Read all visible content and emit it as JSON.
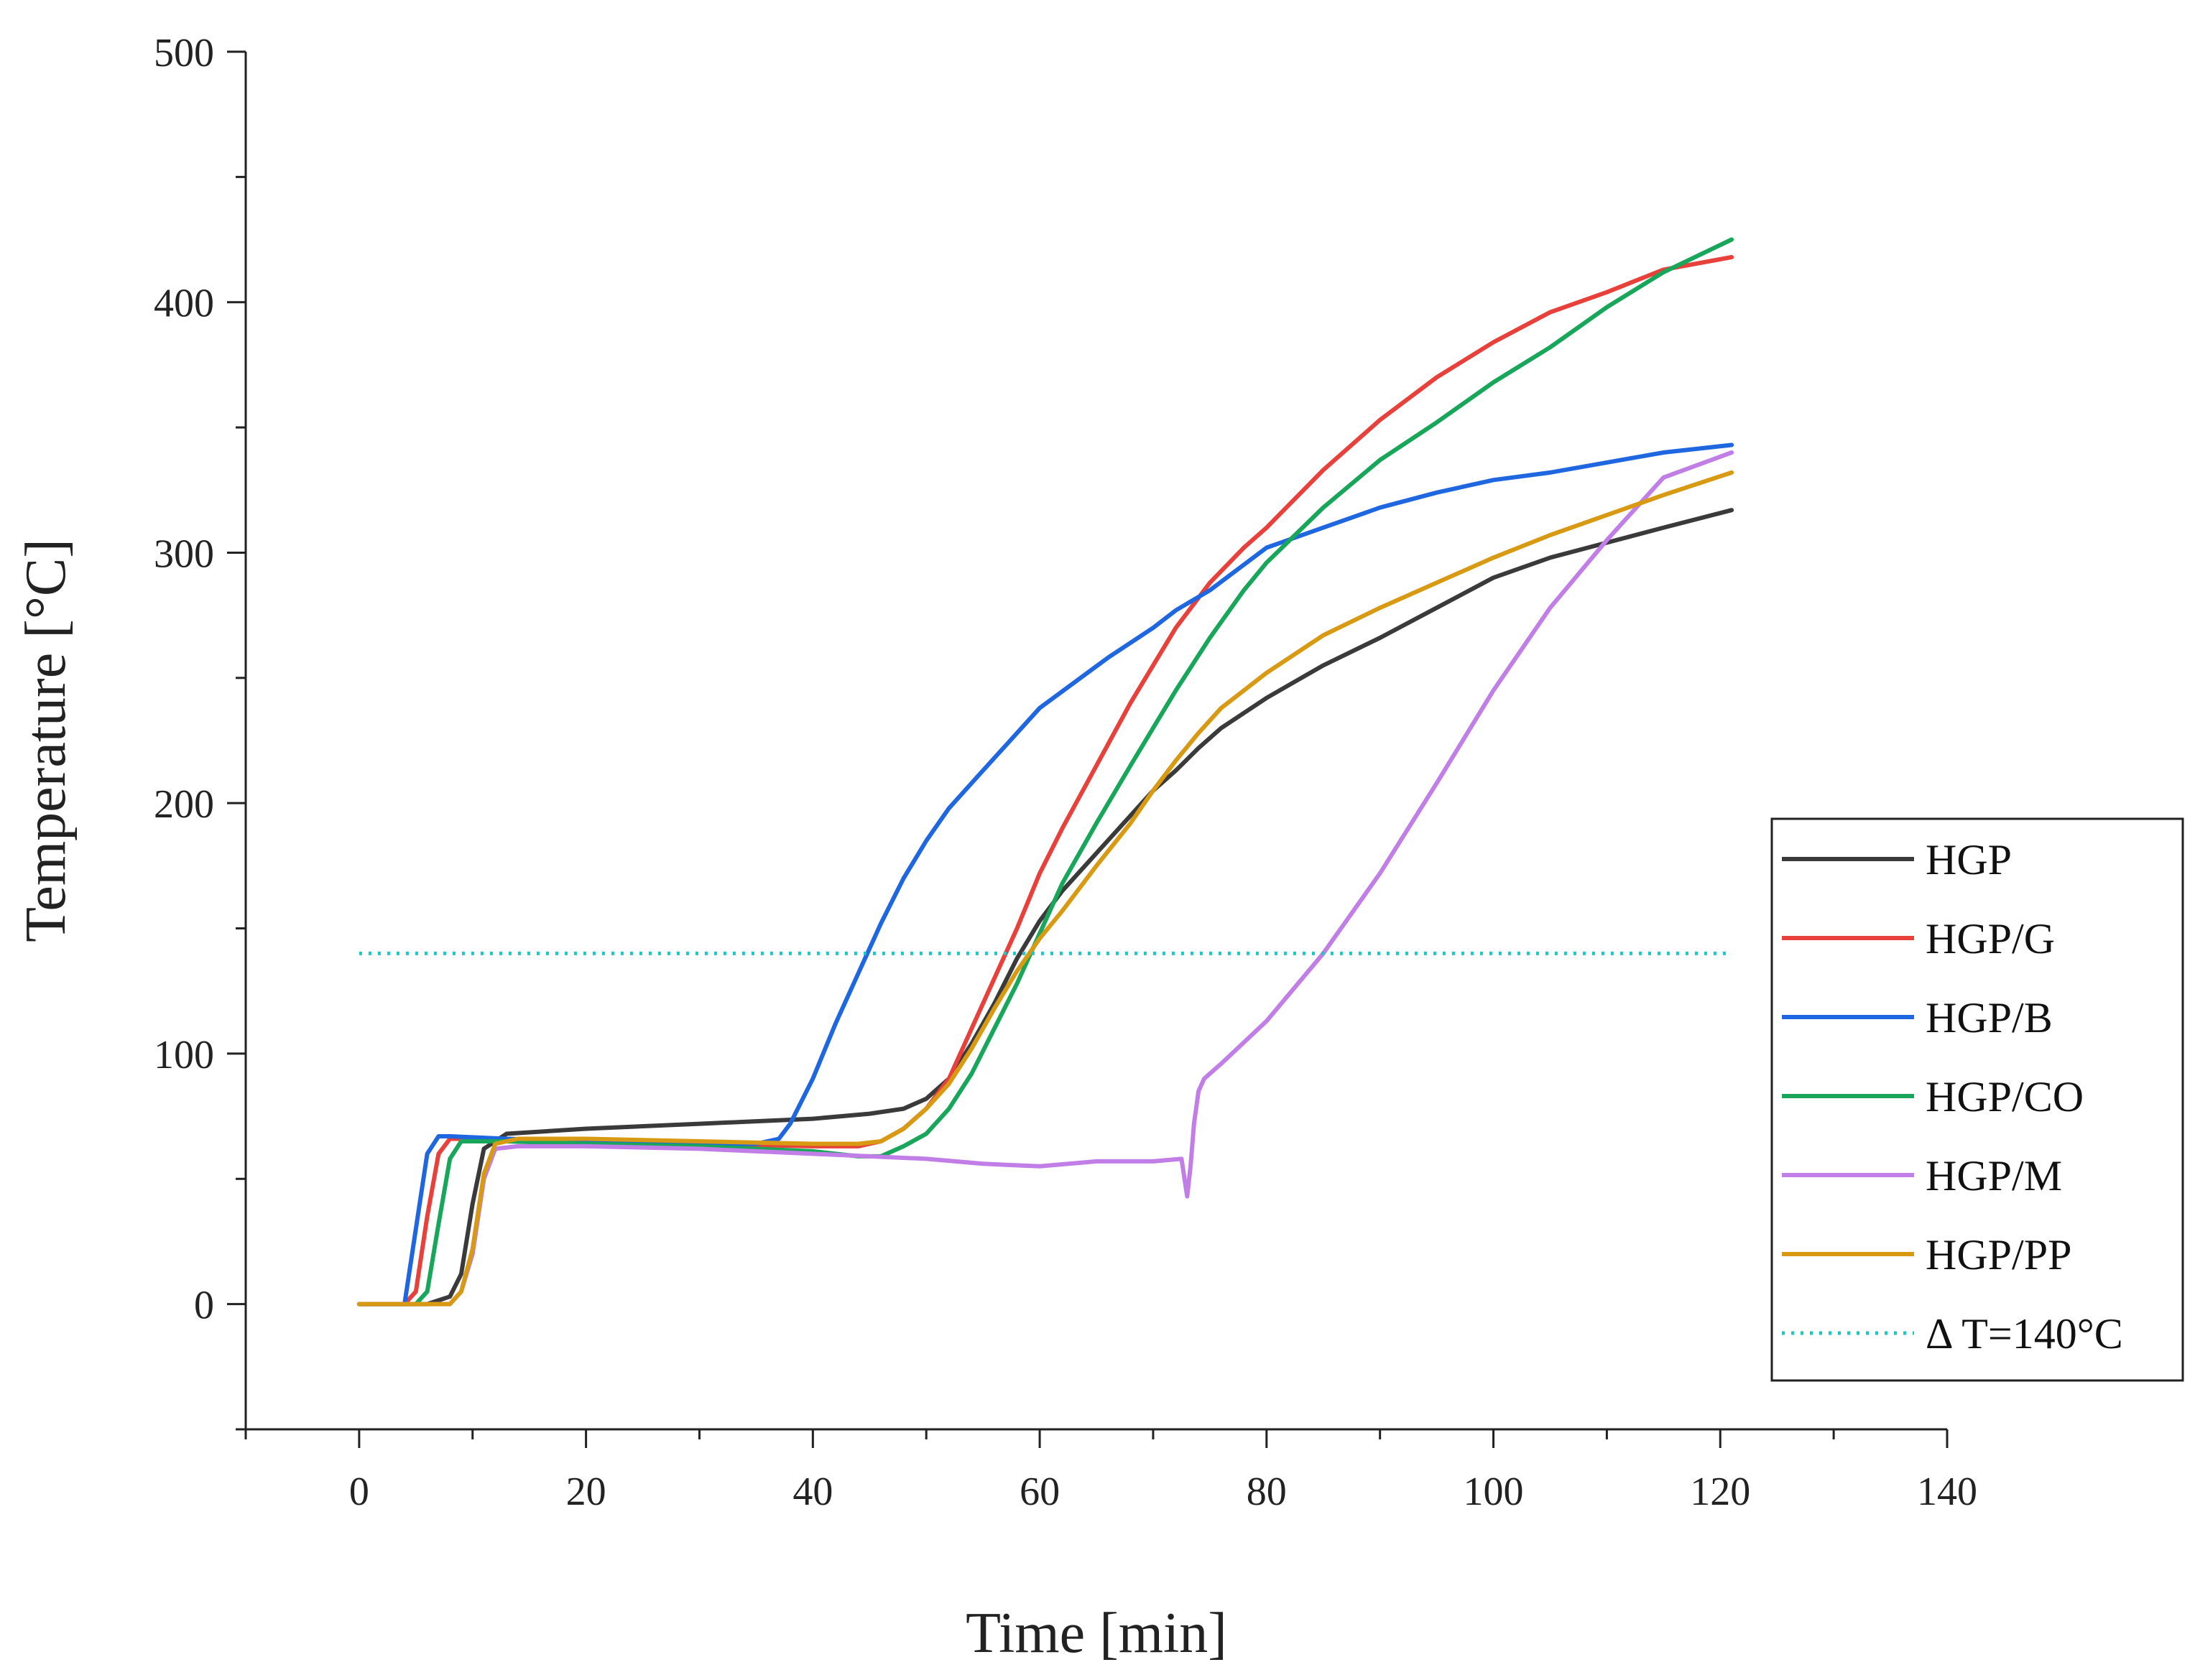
{
  "chart_data": {
    "type": "line",
    "title": "",
    "xlabel": "Time [min]",
    "ylabel": "Temperature [°C]",
    "xlim": [
      -10,
      140
    ],
    "ylim": [
      -50,
      500
    ],
    "xticks": [
      0,
      20,
      40,
      60,
      80,
      100,
      120,
      140
    ],
    "yticks": [
      0,
      100,
      200,
      300,
      400,
      500
    ],
    "legend_position": "right",
    "series": [
      {
        "name": "HGP",
        "color": "#3a3a3a",
        "style": "solid",
        "x": [
          0,
          6,
          8,
          9,
          10,
          11,
          13,
          20,
          30,
          40,
          45,
          48,
          50,
          52,
          54,
          56,
          58,
          60,
          62,
          65,
          68,
          70,
          72,
          74,
          76,
          80,
          85,
          90,
          95,
          100,
          105,
          110,
          115,
          121
        ],
        "y": [
          0,
          0,
          3,
          12,
          40,
          62,
          68,
          70,
          72,
          74,
          76,
          78,
          82,
          90,
          104,
          120,
          138,
          153,
          165,
          180,
          195,
          205,
          213,
          222,
          230,
          242,
          255,
          266,
          278,
          290,
          298,
          304,
          310,
          317
        ]
      },
      {
        "name": "HGP/G",
        "color": "#e8403a",
        "style": "solid",
        "x": [
          0,
          4,
          5,
          6,
          7,
          8,
          13,
          20,
          30,
          40,
          44,
          46,
          48,
          50,
          52,
          54,
          56,
          58,
          60,
          62,
          65,
          68,
          70,
          72,
          75,
          78,
          80,
          85,
          90,
          95,
          100,
          105,
          110,
          115,
          121
        ],
        "y": [
          0,
          0,
          5,
          35,
          60,
          66,
          66,
          65,
          64,
          63,
          63,
          65,
          70,
          78,
          90,
          110,
          130,
          150,
          172,
          190,
          215,
          240,
          255,
          270,
          288,
          302,
          310,
          333,
          353,
          370,
          384,
          396,
          404,
          413,
          418
        ]
      },
      {
        "name": "HGP/B",
        "color": "#1f67e0",
        "style": "solid",
        "x": [
          0,
          4,
          5,
          6,
          7,
          8,
          13,
          20,
          30,
          35,
          37,
          38,
          40,
          42,
          44,
          46,
          48,
          50,
          52,
          55,
          58,
          60,
          63,
          66,
          70,
          72,
          75,
          80,
          85,
          90,
          95,
          100,
          105,
          110,
          115,
          121
        ],
        "y": [
          0,
          0,
          30,
          60,
          67,
          67,
          66,
          65,
          64,
          64,
          66,
          72,
          90,
          112,
          132,
          152,
          170,
          185,
          198,
          213,
          228,
          238,
          248,
          258,
          270,
          277,
          285,
          302,
          310,
          318,
          324,
          329,
          332,
          336,
          340,
          343
        ]
      },
      {
        "name": "HGP/CO",
        "color": "#17a65a",
        "style": "solid",
        "x": [
          0,
          5,
          6,
          7,
          8,
          9,
          13,
          20,
          30,
          40,
          44,
          46,
          48,
          50,
          52,
          54,
          56,
          58,
          60,
          62,
          65,
          68,
          70,
          72,
          75,
          78,
          80,
          85,
          90,
          95,
          100,
          105,
          110,
          115,
          121
        ],
        "y": [
          0,
          0,
          5,
          32,
          58,
          65,
          65,
          64,
          63,
          61,
          59,
          59,
          63,
          68,
          78,
          92,
          110,
          128,
          148,
          168,
          192,
          215,
          230,
          245,
          266,
          285,
          296,
          318,
          337,
          352,
          368,
          382,
          398,
          412,
          425
        ]
      },
      {
        "name": "HGP/M",
        "color": "#c07ee6",
        "style": "solid",
        "x": [
          0,
          8,
          9,
          10,
          11,
          12,
          14,
          20,
          30,
          40,
          50,
          55,
          60,
          65,
          70,
          72.5,
          73,
          73.3,
          73.6,
          74,
          74.5,
          76,
          80,
          85,
          90,
          95,
          100,
          105,
          110,
          115,
          121
        ],
        "y": [
          0,
          0,
          5,
          20,
          50,
          62,
          63,
          63,
          62,
          60,
          58,
          56,
          55,
          57,
          57,
          58,
          43,
          55,
          72,
          85,
          90,
          96,
          113,
          140,
          172,
          208,
          245,
          278,
          305,
          330,
          340
        ]
      },
      {
        "name": "HGP/PP",
        "color": "#d99a13",
        "style": "solid",
        "x": [
          0,
          8,
          9,
          10,
          11,
          12,
          14,
          20,
          30,
          40,
          44,
          46,
          48,
          50,
          52,
          54,
          56,
          58,
          60,
          62,
          65,
          68,
          70,
          72,
          74,
          76,
          80,
          85,
          90,
          95,
          100,
          105,
          110,
          115,
          121
        ],
        "y": [
          0,
          0,
          5,
          22,
          52,
          64,
          66,
          66,
          65,
          64,
          64,
          65,
          70,
          78,
          88,
          102,
          118,
          133,
          146,
          157,
          175,
          192,
          205,
          217,
          228,
          238,
          252,
          267,
          278,
          288,
          298,
          307,
          315,
          323,
          332
        ]
      },
      {
        "name": "Δ T=140°C",
        "color": "#1fc6c6",
        "style": "dotted",
        "x": [
          0,
          121
        ],
        "y": [
          140,
          140
        ]
      }
    ]
  }
}
